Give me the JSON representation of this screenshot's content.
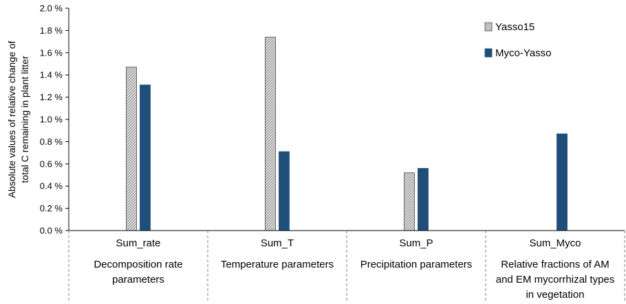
{
  "chart_data": {
    "type": "bar",
    "title": "",
    "xlabel": "",
    "ylabel_lines": [
      "Absolute values of relative change of",
      "total C remaining in plant litter"
    ],
    "ylim": [
      0,
      2.0
    ],
    "yticks": [
      "0.0 %",
      "0.2 %",
      "0.4 %",
      "0.6 %",
      "0.8 %",
      "1.0 %",
      "1.2 %",
      "1.4 %",
      "1.6 %",
      "1.8 %",
      "2.0 %"
    ],
    "grid": false,
    "legend_position": "top-right",
    "categories": [
      "Sum_rate",
      "Sum_T",
      "Sum_P",
      "Sum_Myco"
    ],
    "category_descriptions": [
      [
        "Decomposition rate",
        "parameters"
      ],
      [
        "Temperature parameters"
      ],
      [
        "Precipitation parameters"
      ],
      [
        "Relative fractions of AM",
        "and EM mycorrhizal types",
        "in vegetation"
      ]
    ],
    "series": [
      {
        "name": "Yasso15",
        "color": "#c8c8c8",
        "pattern": "hatched",
        "values": [
          1.47,
          1.74,
          0.52,
          null
        ]
      },
      {
        "name": "Myco-Yasso",
        "color": "#1f4e79",
        "pattern": "solid",
        "values": [
          1.31,
          0.71,
          0.56,
          0.87
        ]
      }
    ]
  }
}
